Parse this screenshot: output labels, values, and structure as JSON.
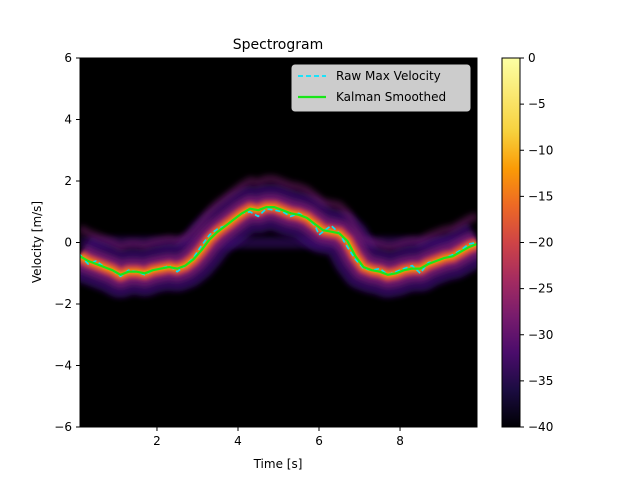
{
  "chart_data": {
    "type": "heatmap",
    "title": "Spectrogram",
    "xlabel": "Time [s]",
    "ylabel": "Velocity [m/s]",
    "xlim": [
      0.1,
      9.9
    ],
    "ylim": [
      -6,
      6
    ],
    "xticks": [
      2,
      4,
      6,
      8
    ],
    "yticks": [
      -6,
      -4,
      -2,
      0,
      2,
      4,
      6
    ],
    "grid": false,
    "legend_position": "top-right",
    "colormap": "inferno",
    "colorbar": {
      "range": [
        -40,
        0
      ],
      "ticks": [
        0,
        -5,
        -10,
        -15,
        -20,
        -25,
        -30,
        -35,
        -40
      ]
    },
    "series": [
      {
        "name": "Raw Max Velocity",
        "style": "dashed",
        "color": "#00e5ff",
        "x": [
          0.1,
          0.3,
          0.5,
          0.7,
          0.9,
          1.1,
          1.3,
          1.5,
          1.7,
          1.9,
          2.1,
          2.3,
          2.5,
          2.7,
          2.9,
          3.1,
          3.3,
          3.5,
          3.7,
          3.9,
          4.1,
          4.3,
          4.5,
          4.7,
          4.9,
          5.1,
          5.3,
          5.5,
          5.7,
          5.9,
          6.0,
          6.1,
          6.3,
          6.5,
          6.7,
          6.9,
          7.1,
          7.3,
          7.5,
          7.7,
          7.9,
          8.1,
          8.3,
          8.5,
          8.7,
          8.9,
          9.1,
          9.3,
          9.5,
          9.7,
          9.9
        ],
        "y": [
          -0.4,
          -0.7,
          -0.6,
          -0.8,
          -0.9,
          -1.1,
          -0.9,
          -0.95,
          -1.05,
          -0.9,
          -0.85,
          -0.75,
          -0.95,
          -0.75,
          -0.5,
          -0.1,
          0.25,
          0.45,
          0.55,
          0.75,
          0.95,
          1.0,
          0.85,
          1.1,
          1.05,
          1.0,
          0.85,
          0.95,
          0.8,
          0.55,
          0.25,
          0.35,
          0.55,
          0.3,
          -0.15,
          -0.55,
          -0.85,
          -0.9,
          -0.85,
          -1.05,
          -0.95,
          -0.85,
          -0.75,
          -1.0,
          -0.65,
          -0.6,
          -0.5,
          -0.4,
          -0.25,
          -0.05,
          0.0
        ]
      },
      {
        "name": "Kalman Smoothed",
        "style": "solid",
        "color": "#19e619",
        "x": [
          0.1,
          0.3,
          0.5,
          0.7,
          0.9,
          1.1,
          1.3,
          1.5,
          1.7,
          1.9,
          2.1,
          2.3,
          2.5,
          2.7,
          2.9,
          3.1,
          3.3,
          3.5,
          3.7,
          3.9,
          4.1,
          4.3,
          4.5,
          4.7,
          4.9,
          5.1,
          5.3,
          5.5,
          5.7,
          5.9,
          6.1,
          6.3,
          6.5,
          6.7,
          6.9,
          7.1,
          7.3,
          7.5,
          7.7,
          7.9,
          8.1,
          8.3,
          8.5,
          8.7,
          8.9,
          9.1,
          9.3,
          9.5,
          9.7,
          9.9
        ],
        "y": [
          -0.45,
          -0.6,
          -0.7,
          -0.8,
          -0.9,
          -1.05,
          -0.95,
          -0.95,
          -1.0,
          -0.9,
          -0.85,
          -0.8,
          -0.85,
          -0.75,
          -0.55,
          -0.25,
          0.1,
          0.35,
          0.55,
          0.75,
          0.95,
          1.1,
          1.05,
          1.15,
          1.15,
          1.05,
          0.95,
          0.9,
          0.8,
          0.6,
          0.4,
          0.35,
          0.3,
          0.05,
          -0.45,
          -0.8,
          -0.9,
          -0.95,
          -1.05,
          -1.0,
          -0.9,
          -0.85,
          -0.85,
          -0.7,
          -0.6,
          -0.5,
          -0.45,
          -0.3,
          -0.15,
          -0.05
        ]
      }
    ]
  }
}
